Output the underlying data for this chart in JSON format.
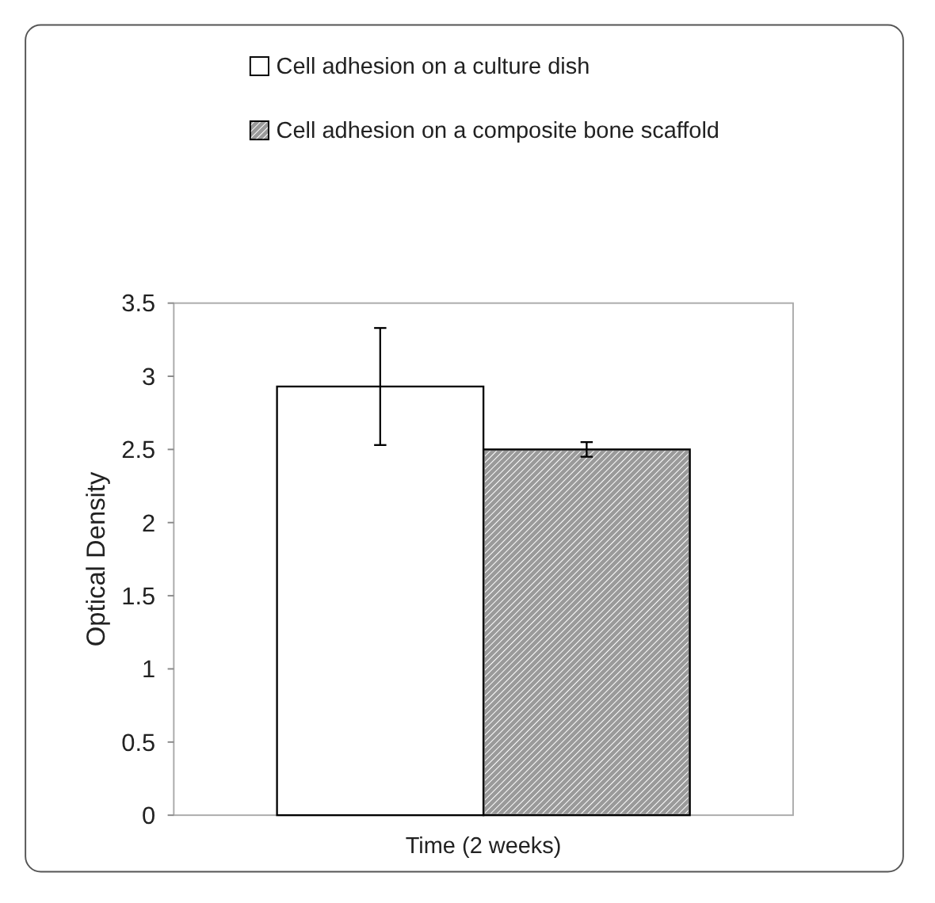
{
  "chart_data": {
    "type": "bar",
    "xlabel": "Time (2 weeks)",
    "ylabel": "Optical Density",
    "categories": [
      null
    ],
    "series": [
      {
        "name": "Cell adhesion on a culture dish",
        "color": "#ffffff",
        "values": [
          2.93
        ],
        "errors": [
          0.4
        ]
      },
      {
        "name": "Cell adhesion on a composite bone scaffold",
        "color": "#9a9a9a",
        "values": [
          2.5
        ],
        "errors": [
          0.05
        ]
      }
    ],
    "ylim": [
      0,
      3.5
    ],
    "yticks": [
      0,
      0.5,
      1,
      1.5,
      2,
      2.5,
      3,
      3.5
    ],
    "grid": false,
    "legend": "top"
  }
}
